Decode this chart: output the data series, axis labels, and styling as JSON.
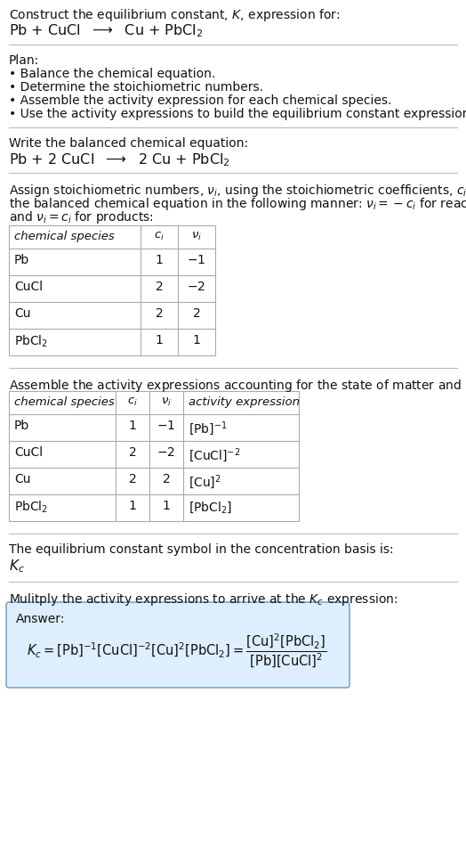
{
  "bg_color": "#ffffff",
  "text_color": "#111111",
  "title_line1": "Construct the equilibrium constant, $K$, expression for:",
  "title_line2": "Pb + CuCl  $\\longrightarrow$  Cu + PbCl$_2$",
  "plan_header": "Plan:",
  "plan_items": [
    "• Balance the chemical equation.",
    "• Determine the stoichiometric numbers.",
    "• Assemble the activity expression for each chemical species.",
    "• Use the activity expressions to build the equilibrium constant expression."
  ],
  "balanced_header": "Write the balanced chemical equation:",
  "balanced_eq": "Pb + 2 CuCl  $\\longrightarrow$  2 Cu + PbCl$_2$",
  "stoich_para": [
    "Assign stoichiometric numbers, $\\nu_i$, using the stoichiometric coefficients, $c_i$, from",
    "the balanced chemical equation in the following manner: $\\nu_i = -c_i$ for reactants",
    "and $\\nu_i = c_i$ for products:"
  ],
  "table1_cols": [
    "chemical species",
    "$c_i$",
    "$\\nu_i$"
  ],
  "table1_rows": [
    [
      "Pb",
      "1",
      "$-1$"
    ],
    [
      "CuCl",
      "2",
      "$-2$"
    ],
    [
      "Cu",
      "2",
      "2"
    ],
    [
      "PbCl$_2$",
      "1",
      "1"
    ]
  ],
  "activity_header": "Assemble the activity expressions accounting for the state of matter and $\\nu_i$:",
  "table2_cols": [
    "chemical species",
    "$c_i$",
    "$\\nu_i$",
    "activity expression"
  ],
  "table2_rows": [
    [
      "Pb",
      "1",
      "$-1$",
      "$[\\mathrm{Pb}]^{-1}$"
    ],
    [
      "CuCl",
      "2",
      "$-2$",
      "$[\\mathrm{CuCl}]^{-2}$"
    ],
    [
      "Cu",
      "2",
      "2",
      "$[\\mathrm{Cu}]^2$"
    ],
    [
      "PbCl$_2$",
      "1",
      "1",
      "$[\\mathrm{PbCl_2}]$"
    ]
  ],
  "kc_header": "The equilibrium constant symbol in the concentration basis is:",
  "kc_symbol": "$K_c$",
  "multiply_header": "Mulitply the activity expressions to arrive at the $K_c$ expression:",
  "answer_label": "Answer:",
  "answer_box_color": "#ddeeff",
  "answer_border_color": "#6699bb",
  "font_size": 10.0
}
